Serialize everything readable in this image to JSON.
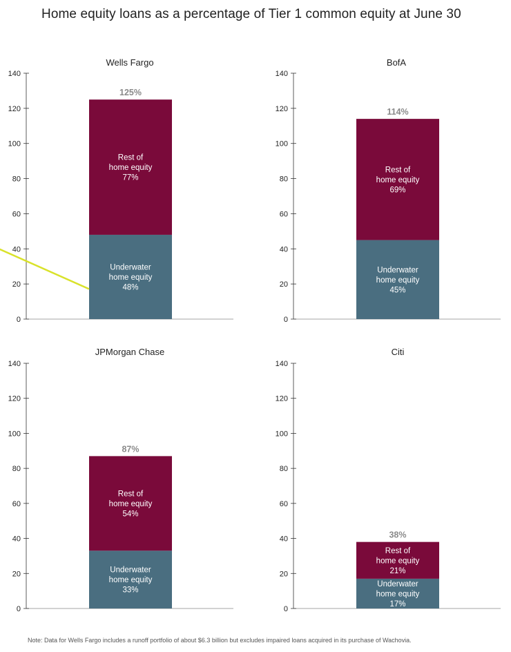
{
  "title": "Home equity loans as a percentage of Tier 1 common equity at June 30",
  "footnote": "Note: Data for Wells Fargo includes a runoff portfolio of about $6.3 billion but excludes impaired loans acquired in its purchase of Wachovia.",
  "colors": {
    "rest": "#7a0a3a",
    "underwater": "#4a6e80",
    "total_label": "#8a8a8a",
    "axis": "#333333",
    "pointer_line": "#d9e22a"
  },
  "chart_data": [
    {
      "type": "bar",
      "title": "Wells Fargo",
      "ylim": [
        0,
        140
      ],
      "yticks": [
        0,
        20,
        40,
        60,
        80,
        100,
        120,
        140
      ],
      "total": 125,
      "total_label": "125%",
      "segments": [
        {
          "name": "Underwater",
          "value": 48,
          "label_lines": [
            "Underwater",
            "home equity",
            "48%"
          ]
        },
        {
          "name": "Rest",
          "value": 77,
          "label_lines": [
            "Rest of",
            "home equity",
            "77%"
          ]
        }
      ]
    },
    {
      "type": "bar",
      "title": "BofA",
      "ylim": [
        0,
        140
      ],
      "yticks": [
        0,
        20,
        40,
        60,
        80,
        100,
        120,
        140
      ],
      "total": 114,
      "total_label": "114%",
      "segments": [
        {
          "name": "Underwater",
          "value": 45,
          "label_lines": [
            "Underwater",
            "home equity",
            "45%"
          ]
        },
        {
          "name": "Rest",
          "value": 69,
          "label_lines": [
            "Rest of",
            "home equity",
            "69%"
          ]
        }
      ]
    },
    {
      "type": "bar",
      "title": "JPMorgan Chase",
      "ylim": [
        0,
        140
      ],
      "yticks": [
        0,
        20,
        40,
        60,
        80,
        100,
        120,
        140
      ],
      "total": 87,
      "total_label": "87%",
      "segments": [
        {
          "name": "Underwater",
          "value": 33,
          "label_lines": [
            "Underwater",
            "home equity",
            "33%"
          ]
        },
        {
          "name": "Rest",
          "value": 54,
          "label_lines": [
            "Rest of",
            "home equity",
            "54%"
          ]
        }
      ]
    },
    {
      "type": "bar",
      "title": "Citi",
      "ylim": [
        0,
        140
      ],
      "yticks": [
        0,
        20,
        40,
        60,
        80,
        100,
        120,
        140
      ],
      "total": 38,
      "total_label": "38%",
      "segments": [
        {
          "name": "Underwater",
          "value": 17,
          "label_lines": [
            "Underwater",
            "home equity",
            "17%"
          ]
        },
        {
          "name": "Rest",
          "value": 21,
          "label_lines": [
            "Rest of",
            "home equity",
            "21%"
          ]
        }
      ]
    }
  ]
}
